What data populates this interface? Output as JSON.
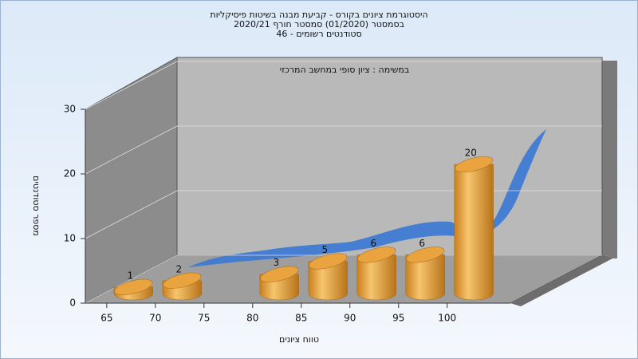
{
  "chart_data": {
    "type": "bar",
    "title": [
      "היסטוגרמת ציונים בקורס - קביעת מבנה בשיטות פיסיקליות",
      "בסמסטר  (01/2020)  סמסטר חורף  2020/21",
      "סטודנטים רשומים - 46"
    ],
    "subtitle": "במשימה : ציון סופי במחשב המרכזי",
    "x_label": "טווח ציונים",
    "y_label": "מספר סטודנטים",
    "x": [
      65,
      70,
      75,
      80,
      85,
      90,
      95,
      100
    ],
    "values": [
      1,
      2,
      null,
      3,
      5,
      6,
      6,
      20
    ],
    "xlim": [
      62.8,
      106.5
    ],
    "xticks": [
      65,
      70,
      75,
      80,
      85,
      90,
      95,
      100
    ],
    "ylim": [
      0,
      30
    ],
    "yticks": [
      0,
      10,
      20,
      30
    ],
    "grid": true,
    "color": "#e8a23c"
  }
}
